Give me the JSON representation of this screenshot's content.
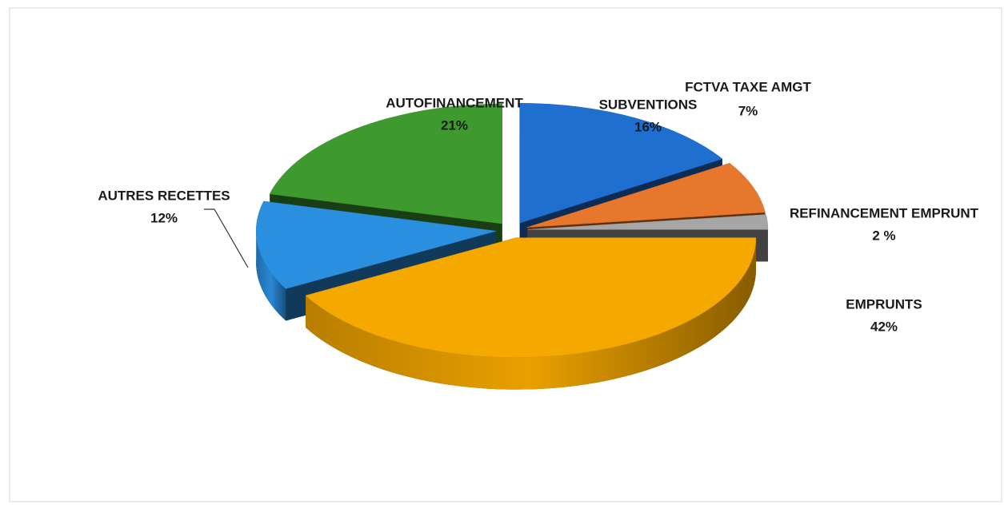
{
  "chart_data": {
    "type": "pie",
    "categories": [
      "SUBVENTIONS",
      "FCTVA TAXE AMGT",
      "REFINANCEMENT EMPRUNT",
      "EMPRUNTS",
      "AUTRES RECETTES",
      "AUTOFINANCEMENT"
    ],
    "values": [
      16,
      7,
      2,
      42,
      12,
      21
    ],
    "value_labels": [
      "16%",
      "7%",
      "2 %",
      "42%",
      "12%",
      "21%"
    ],
    "colors": [
      "#1f6fd0",
      "#e8772e",
      "#a6a6a6",
      "#f5a800",
      "#2b8fe0",
      "#3e9a2f"
    ]
  }
}
